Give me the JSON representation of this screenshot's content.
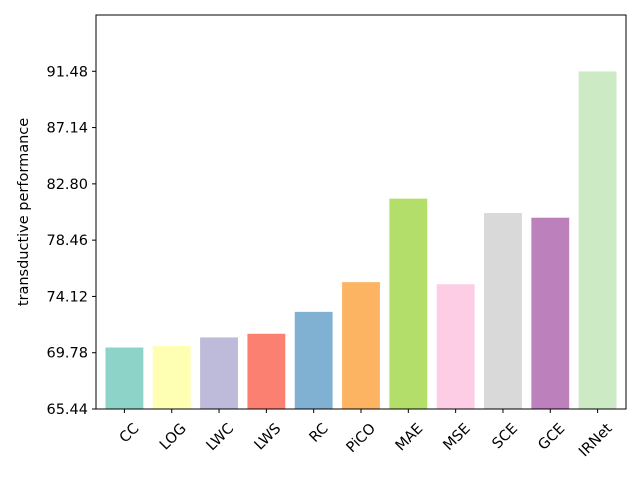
{
  "chart_data": {
    "type": "bar",
    "title": "",
    "xlabel": "",
    "ylabel": "transductive performance",
    "categories": [
      "CC",
      "LOG",
      "LWC",
      "LWS",
      "RC",
      "PiCO",
      "MAE",
      "MSE",
      "SCE",
      "GCE",
      "IRNet"
    ],
    "values": [
      70.18,
      70.3,
      70.96,
      71.24,
      72.93,
      75.22,
      81.66,
      75.06,
      80.55,
      80.19,
      91.47
    ],
    "colors": [
      "#8dd3c7",
      "#ffffb3",
      "#bebada",
      "#fb8072",
      "#80b1d3",
      "#fdb462",
      "#b3de69",
      "#fccde5",
      "#d9d9d9",
      "#bc80bd",
      "#ccebc5"
    ],
    "yticks": [
      "65.44",
      "69.78",
      "74.12",
      "78.46",
      "82.80",
      "87.14",
      "91.48"
    ],
    "ylim": [
      65.44,
      95.82
    ],
    "grid": false,
    "legend": "none"
  }
}
